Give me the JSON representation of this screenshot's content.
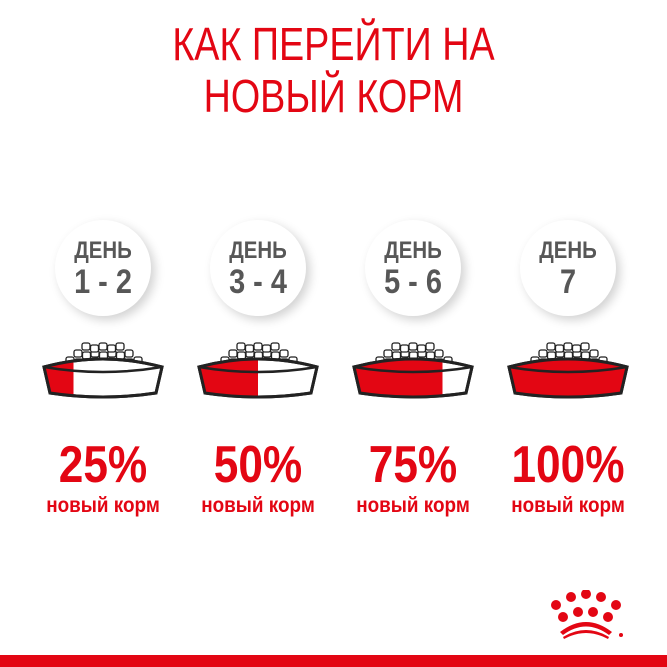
{
  "title_line1": "КАК ПЕРЕЙТИ НА",
  "title_line2": "НОВЫЙ КОРМ",
  "accent_color": "#e30613",
  "steps": [
    {
      "day_label": "ДЕНЬ",
      "days": "1 - 2",
      "percent": "25%",
      "new_food_fraction": 0.25,
      "caption": "новый корм"
    },
    {
      "day_label": "ДЕНЬ",
      "days": "3 - 4",
      "percent": "50%",
      "new_food_fraction": 0.5,
      "caption": "новый корм"
    },
    {
      "day_label": "ДЕНЬ",
      "days": "5 - 6",
      "percent": "75%",
      "new_food_fraction": 0.75,
      "caption": "новый корм"
    },
    {
      "day_label": "ДЕНЬ",
      "days": "7",
      "percent": "100%",
      "new_food_fraction": 1.0,
      "caption": "новый корм"
    }
  ],
  "logo": "royal-canin-crown-logo"
}
